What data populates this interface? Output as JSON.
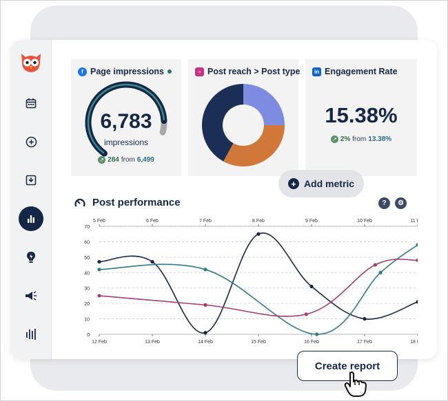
{
  "panels": {
    "impressions": {
      "title": "Page impressions",
      "network": "facebook",
      "value": "6,783",
      "unit": "impressions",
      "delta": "284",
      "from_label": "from",
      "previous": "6,499",
      "gauge_fraction": 0.93
    },
    "reach": {
      "title": "Post reach > Post type",
      "network": "instagram",
      "donut": [
        {
          "label": "segment-1",
          "fraction": 0.25,
          "color": "#7d8be0"
        },
        {
          "label": "segment-2",
          "fraction": 0.33,
          "color": "#d2773a"
        },
        {
          "label": "segment-3",
          "fraction": 0.42,
          "color": "#1b2e55"
        }
      ]
    },
    "engagement": {
      "title": "Engagement Rate",
      "network": "linkedin",
      "value": "15.38%",
      "delta": "2%",
      "from_label": "from",
      "previous": "13.38%"
    }
  },
  "add_metric_label": "Add metric",
  "post_performance": {
    "title": "Post performance"
  },
  "create_report_label": "Create report",
  "sidebar": {
    "items": [
      "calendar-icon",
      "plus-circle-icon",
      "inbox-icon",
      "analytics-icon",
      "lightbulb-icon",
      "megaphone-icon",
      "audio-bars-icon"
    ]
  },
  "chart_data": {
    "type": "line",
    "x_top_ticks": [
      "5 Feb",
      "6 Feb",
      "7 Feb",
      "8 Feb",
      "9 Feb",
      "10 Feb",
      "11 Feb"
    ],
    "x_bottom_ticks": [
      "12 Feb",
      "13 Feb",
      "14 Feb",
      "15 Feb",
      "16 Feb",
      "17 Feb",
      "18 Feb"
    ],
    "y_ticks": [
      "70",
      "60",
      "50",
      "40",
      "30",
      "20",
      "10",
      "0"
    ],
    "ylim": [
      0,
      70
    ],
    "grid": true,
    "series": [
      {
        "color": "#152746",
        "points": [
          [
            0,
            47
          ],
          [
            1,
            47
          ],
          [
            2,
            1
          ],
          [
            3,
            65
          ],
          [
            4,
            31
          ],
          [
            5,
            10
          ],
          [
            6,
            21
          ]
        ]
      },
      {
        "color": "#2d7a8a",
        "points": [
          [
            0,
            42
          ],
          [
            2,
            42
          ],
          [
            4.1,
            0
          ],
          [
            5.3,
            40
          ],
          [
            6,
            58
          ]
        ]
      },
      {
        "color": "#a83a6e",
        "points": [
          [
            0,
            25
          ],
          [
            2,
            19
          ],
          [
            3.9,
            13
          ],
          [
            5.2,
            45
          ],
          [
            6,
            48
          ]
        ]
      }
    ]
  }
}
